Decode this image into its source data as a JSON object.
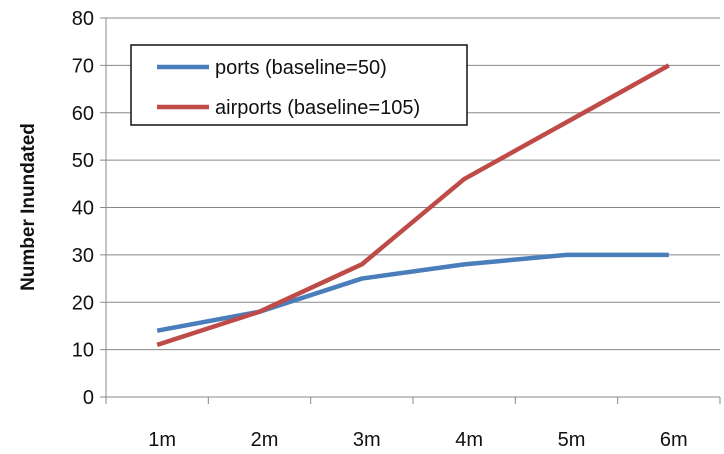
{
  "chart_data": {
    "type": "line",
    "title": "",
    "xlabel": "",
    "ylabel": "Number Inundated",
    "categories": [
      "1m",
      "2m",
      "3m",
      "4m",
      "5m",
      "6m"
    ],
    "ylim": [
      0,
      80
    ],
    "yticks": [
      "0",
      "10",
      "20",
      "30",
      "40",
      "50",
      "60",
      "70",
      "80"
    ],
    "grid": "horizontal",
    "legend_position": "top-left",
    "series": [
      {
        "name": "ports (baseline=50)",
        "color": "#4a7ebb",
        "values": [
          14,
          18,
          25,
          28,
          30,
          30
        ]
      },
      {
        "name": "airports (baseline=105)",
        "color": "#be4b48",
        "values": [
          11,
          18,
          28,
          46,
          58,
          70
        ]
      }
    ]
  }
}
